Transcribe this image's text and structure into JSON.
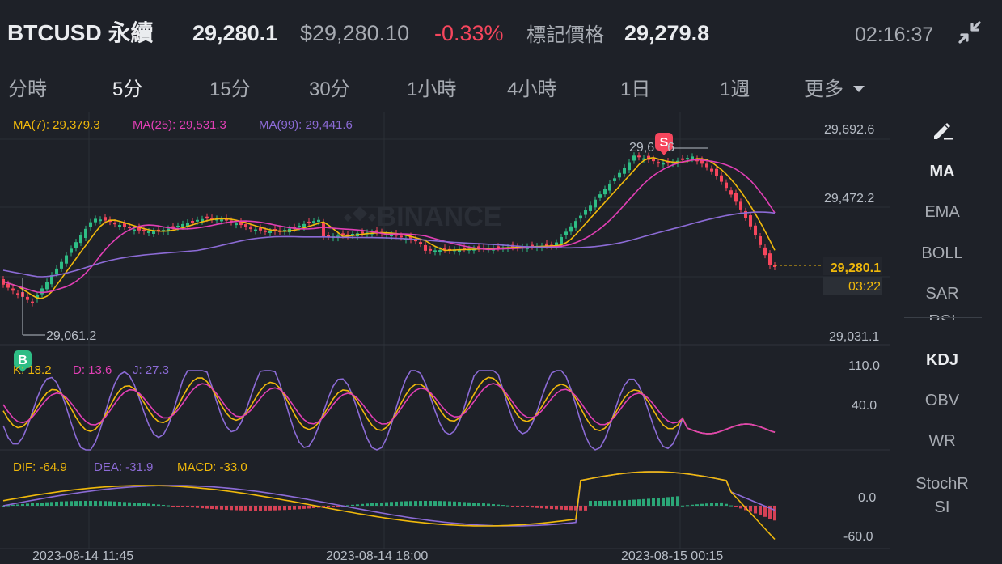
{
  "header": {
    "symbol": "BTCUSD 永續",
    "last_price": "29,280.1",
    "usd_price": "$29,280.10",
    "change": "-0.33%",
    "mark_label": "標記價格",
    "mark_price": "29,279.8",
    "time": "02:16:37",
    "collapse_icon": "collapse-arrows-icon"
  },
  "tabs": [
    {
      "label": "分時"
    },
    {
      "label": "5分",
      "active": true
    },
    {
      "label": "15分"
    },
    {
      "label": "30分"
    },
    {
      "label": "1小時"
    },
    {
      "label": "4小時"
    },
    {
      "label": "1日"
    },
    {
      "label": "1週"
    },
    {
      "label": "更多"
    }
  ],
  "ma_legend": {
    "ma7": "MA(7): 29,379.3",
    "ma25": "MA(25): 29,531.3",
    "ma99": "MA(99): 29,441.6"
  },
  "kdj_legend": {
    "k": "K: 18.2",
    "d": "D: 13.6",
    "j": "J: 27.3"
  },
  "macd_legend": {
    "dif": "DIF: -64.9",
    "dea": "DEA: -31.9",
    "macd": "MACD: -33.0"
  },
  "price_axis": [
    "29,692.6",
    "29,472.2",
    "29,031.1"
  ],
  "current_price_tag": "29,280.1",
  "countdown_tag": "03:22",
  "high_label": "29,6",
  "high_label_tail": "6",
  "low_label": "29,061.2",
  "kdj_axis": [
    "110.0",
    "40.0"
  ],
  "macd_axis": [
    "0.0",
    "-60.0"
  ],
  "time_axis": [
    "2023-08-14 11:45",
    "2023-08-14 18:00",
    "2023-08-15 00:15"
  ],
  "watermark": "BINANCE",
  "sell_marker": "S",
  "buy_marker": "B",
  "sidebar": {
    "draw_icon": "pencil-icon",
    "items": [
      {
        "label": "MA",
        "active": true
      },
      {
        "label": "EMA"
      },
      {
        "label": "BOLL"
      },
      {
        "label": "SAR"
      },
      {
        "label": "RSI"
      },
      {
        "label": "KDJ",
        "active": true
      },
      {
        "label": "OBV"
      },
      {
        "label": "WR"
      },
      {
        "label": "StochRSI"
      }
    ]
  },
  "colors": {
    "up": "#2ebd85",
    "down": "#f6465d",
    "ma7": "#f0b90b",
    "ma25": "#e13fb5",
    "ma99": "#8c6bd6",
    "grid": "#2b2f36",
    "axis_text": "#b7bdc6"
  }
}
